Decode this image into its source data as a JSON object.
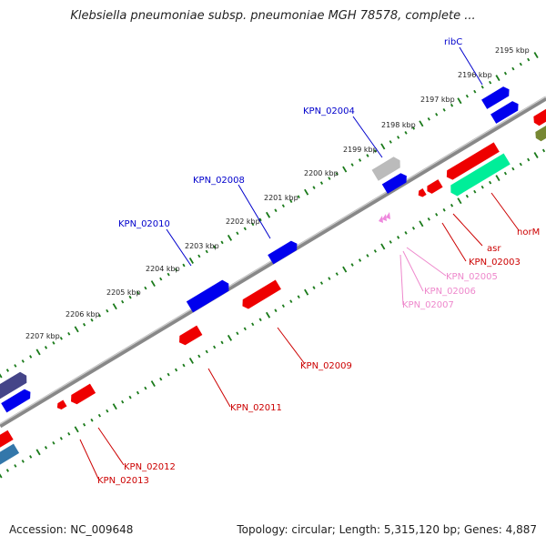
{
  "title": "Klebsiella pneumoniae subsp. pneumoniae MGH 78578, complete ...",
  "accession_text": "Accession: NC_009648",
  "summary_text": "Topology: circular; Length: 5,315,120 bp; Genes: 4,887",
  "colors": {
    "backbone": "#808080",
    "tick_dots": "#1a7a1a",
    "forward_gene": "#0000ee",
    "reverse_gene": "#ee0000",
    "forward_label": "#0000cc",
    "reverse_label": "#cc0000",
    "pink_label": "#ee88cc",
    "pink_gene": "#ee88dd",
    "gray_gene": "#bbbbbb",
    "teal_gene": "#00ee99",
    "navy_gene": "#444488",
    "steel_gene": "#3377aa",
    "olive_gene": "#778833"
  },
  "ticks": [
    {
      "label": "2195 kbp"
    },
    {
      "label": "2196 kbp"
    },
    {
      "label": "2197 kbp"
    },
    {
      "label": "2198 kbp"
    },
    {
      "label": "2199 kbp"
    },
    {
      "label": "2200 kbp"
    },
    {
      "label": "2201 kbp"
    },
    {
      "label": "2202 kbp"
    },
    {
      "label": "2203 kbp"
    },
    {
      "label": "2204 kbp"
    },
    {
      "label": "2205 kbp"
    },
    {
      "label": "2206 kbp"
    },
    {
      "label": "2207 kbp"
    }
  ],
  "forward_labels": [
    {
      "name": "ribC"
    },
    {
      "name": "KPN_02004"
    },
    {
      "name": "KPN_02008"
    },
    {
      "name": "KPN_02010"
    }
  ],
  "reverse_labels": [
    {
      "name": "norM"
    },
    {
      "name": "asr"
    },
    {
      "name": "KPN_02003"
    },
    {
      "name": "KPN_02005"
    },
    {
      "name": "KPN_02006"
    },
    {
      "name": "KPN_02007"
    },
    {
      "name": "KPN_02009"
    },
    {
      "name": "KPN_02011"
    },
    {
      "name": "KPN_02012"
    },
    {
      "name": "KPN_02013"
    }
  ]
}
